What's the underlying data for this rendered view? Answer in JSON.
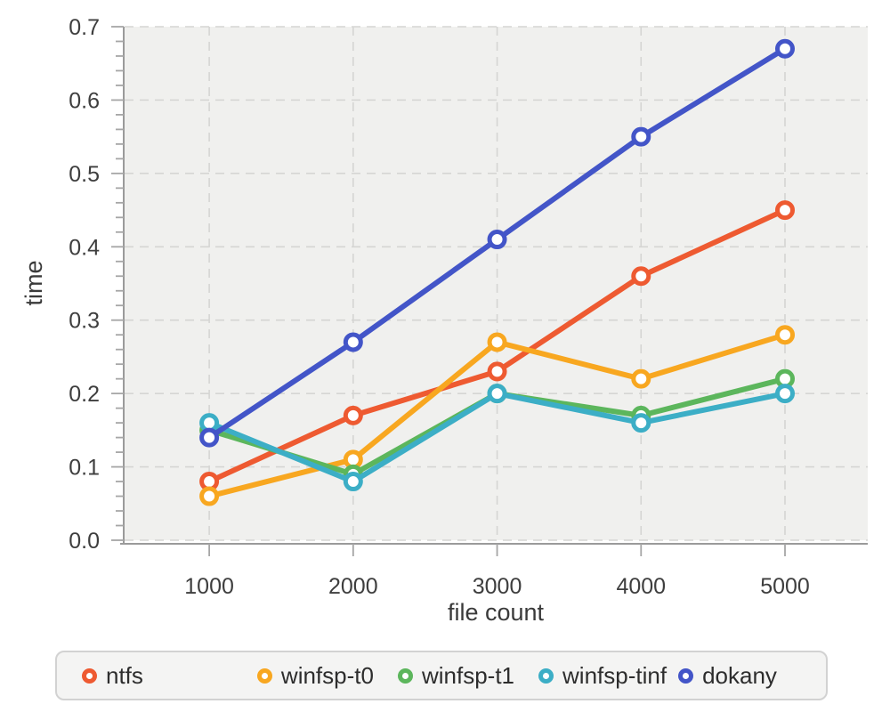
{
  "chart_data": {
    "type": "line",
    "title": "",
    "xlabel": "file count",
    "ylabel": "time",
    "x": [
      1000,
      2000,
      3000,
      4000,
      5000
    ],
    "x_ticks": [
      1000,
      2000,
      3000,
      4000,
      5000
    ],
    "x_tick_labels": [
      "1000",
      "2000",
      "3000",
      "4000",
      "5000"
    ],
    "y_ticks": [
      0.0,
      0.1,
      0.2,
      0.3,
      0.4,
      0.5,
      0.6,
      0.7
    ],
    "y_tick_labels": [
      "0.0",
      "0.1",
      "0.2",
      "0.3",
      "0.4",
      "0.5",
      "0.6",
      "0.7"
    ],
    "y_minor_step": 0.02,
    "xlim": [
      412,
      5575
    ],
    "ylim": [
      0,
      0.7
    ],
    "grid": "dashed",
    "legend_position": "bottom",
    "marker": "open-circle",
    "series": [
      {
        "name": "ntfs",
        "color": "#ee5a31",
        "values": [
          0.08,
          0.17,
          0.23,
          0.36,
          0.45
        ]
      },
      {
        "name": "winfsp-t0",
        "color": "#f8a720",
        "values": [
          0.06,
          0.11,
          0.27,
          0.22,
          0.28
        ]
      },
      {
        "name": "winfsp-t1",
        "color": "#5cb65c",
        "values": [
          0.15,
          0.09,
          0.2,
          0.17,
          0.22
        ]
      },
      {
        "name": "winfsp-tinf",
        "color": "#3caec6",
        "values": [
          0.16,
          0.08,
          0.2,
          0.16,
          0.2
        ]
      },
      {
        "name": "dokany",
        "color": "#4355c8",
        "values": [
          0.14,
          0.27,
          0.41,
          0.55,
          0.67
        ]
      }
    ],
    "colors": {
      "plot_background": "#f0f0ee",
      "grid_line": "#d5d5d3",
      "axis_line": "#9a9a9a",
      "tick_mark": "#a6a6a6",
      "tick_text": "#3e3e3e",
      "legend_background": "#f4f4f3",
      "legend_border": "#d2d2d2"
    }
  }
}
